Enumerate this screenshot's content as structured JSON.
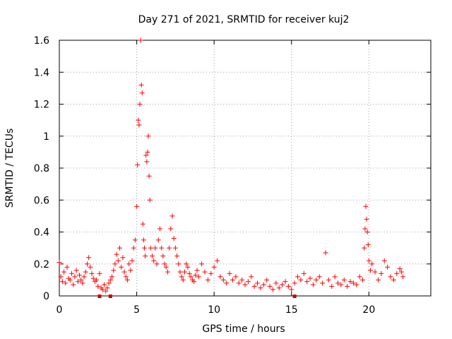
{
  "chart_data": {
    "type": "scatter",
    "title": "Day 271 of 2021, SRMTID for receiver kuj2",
    "xlabel": "GPS time / hours",
    "ylabel": "SRMTID / TECUs",
    "xlim": [
      0,
      24
    ],
    "ylim": [
      0,
      1.6
    ],
    "xticks": [
      0,
      5,
      10,
      15,
      20
    ],
    "xtick_labels": [
      "0",
      "5",
      "10",
      "15",
      "20"
    ],
    "yticks": [
      0,
      0.2,
      0.4,
      0.6,
      0.8,
      1.0,
      1.2,
      1.4,
      1.6
    ],
    "ytick_labels": [
      "0",
      "0.2",
      "0.4",
      "0.6",
      "0.8",
      "1",
      "1.2",
      "1.4",
      "1.6"
    ],
    "grid": true,
    "marker": "plus",
    "color": "#ff0000",
    "series": [
      {
        "name": "SRMTID",
        "x": [
          0.0,
          0.1,
          0.2,
          0.3,
          0.4,
          0.5,
          0.6,
          0.7,
          0.8,
          0.9,
          1.0,
          1.1,
          1.2,
          1.3,
          1.4,
          1.5,
          1.6,
          1.7,
          1.8,
          1.9,
          2.0,
          2.1,
          2.2,
          2.3,
          2.4,
          2.5,
          2.6,
          2.7,
          2.8,
          2.9,
          3.0,
          3.1,
          3.2,
          3.3,
          3.4,
          3.5,
          3.6,
          3.7,
          3.8,
          3.9,
          4.0,
          4.1,
          4.2,
          4.3,
          4.4,
          4.5,
          4.6,
          4.7,
          4.8,
          4.9,
          5.0,
          5.05,
          5.1,
          5.15,
          5.2,
          5.25,
          5.3,
          5.35,
          5.4,
          5.45,
          5.5,
          5.55,
          5.6,
          5.65,
          5.7,
          5.75,
          5.8,
          5.85,
          5.9,
          6.0,
          6.1,
          6.2,
          6.3,
          6.4,
          6.5,
          6.6,
          6.7,
          6.8,
          6.9,
          7.0,
          7.1,
          7.2,
          7.3,
          7.4,
          7.5,
          7.6,
          7.7,
          7.8,
          7.9,
          8.0,
          8.1,
          8.2,
          8.3,
          8.4,
          8.5,
          8.6,
          8.7,
          8.8,
          8.9,
          9.0,
          9.2,
          9.4,
          9.6,
          9.8,
          10.0,
          10.2,
          10.4,
          10.6,
          10.8,
          11.0,
          11.2,
          11.4,
          11.6,
          11.8,
          12.0,
          12.2,
          12.4,
          12.6,
          12.8,
          13.0,
          13.2,
          13.4,
          13.6,
          13.8,
          14.0,
          14.2,
          14.4,
          14.6,
          14.8,
          15.0,
          15.2,
          15.4,
          15.6,
          15.8,
          16.0,
          16.2,
          16.4,
          16.6,
          16.8,
          17.0,
          17.2,
          17.4,
          17.6,
          17.8,
          18.0,
          18.2,
          18.4,
          18.6,
          18.8,
          19.0,
          19.2,
          19.4,
          19.6,
          19.7,
          19.75,
          19.8,
          19.85,
          19.9,
          19.95,
          20.0,
          20.1,
          20.2,
          20.4,
          20.6,
          20.8,
          21.0,
          21.2,
          21.4,
          21.6,
          21.8,
          22.0,
          22.1,
          22.2
        ],
        "y": [
          0.21,
          0.12,
          0.09,
          0.15,
          0.08,
          0.18,
          0.11,
          0.1,
          0.14,
          0.07,
          0.12,
          0.16,
          0.09,
          0.13,
          0.1,
          0.08,
          0.12,
          0.15,
          0.2,
          0.24,
          0.18,
          0.14,
          0.11,
          0.09,
          0.1,
          0.06,
          0.14,
          0.05,
          0.04,
          0.07,
          0.03,
          0.05,
          0.08,
          0.1,
          0.12,
          0.16,
          0.2,
          0.26,
          0.22,
          0.3,
          0.18,
          0.24,
          0.15,
          0.12,
          0.1,
          0.2,
          0.16,
          0.22,
          0.3,
          0.35,
          0.56,
          0.82,
          1.1,
          1.07,
          1.2,
          1.6,
          1.32,
          1.27,
          0.45,
          0.35,
          0.3,
          0.25,
          0.88,
          0.84,
          0.9,
          1.0,
          0.75,
          0.6,
          0.3,
          0.25,
          0.22,
          0.3,
          0.2,
          0.35,
          0.42,
          0.3,
          0.25,
          0.2,
          0.18,
          0.15,
          0.3,
          0.42,
          0.5,
          0.36,
          0.3,
          0.25,
          0.2,
          0.15,
          0.12,
          0.1,
          0.15,
          0.2,
          0.18,
          0.14,
          0.12,
          0.1,
          0.09,
          0.13,
          0.16,
          0.12,
          0.2,
          0.15,
          0.1,
          0.14,
          0.18,
          0.22,
          0.12,
          0.1,
          0.08,
          0.14,
          0.1,
          0.12,
          0.08,
          0.1,
          0.07,
          0.09,
          0.12,
          0.06,
          0.08,
          0.05,
          0.07,
          0.1,
          0.06,
          0.04,
          0.08,
          0.05,
          0.07,
          0.09,
          0.06,
          0.04,
          0.08,
          0.12,
          0.1,
          0.14,
          0.09,
          0.11,
          0.07,
          0.1,
          0.12,
          0.08,
          0.27,
          0.1,
          0.06,
          0.12,
          0.08,
          0.07,
          0.1,
          0.06,
          0.09,
          0.08,
          0.07,
          0.12,
          0.1,
          0.3,
          0.42,
          0.56,
          0.48,
          0.4,
          0.32,
          0.22,
          0.16,
          0.2,
          0.15,
          0.1,
          0.14,
          0.22,
          0.18,
          0.12,
          0.1,
          0.14,
          0.17,
          0.15,
          0.12
        ]
      }
    ],
    "special_markers_x": [
      2.6,
      3.3,
      15.2
    ]
  }
}
